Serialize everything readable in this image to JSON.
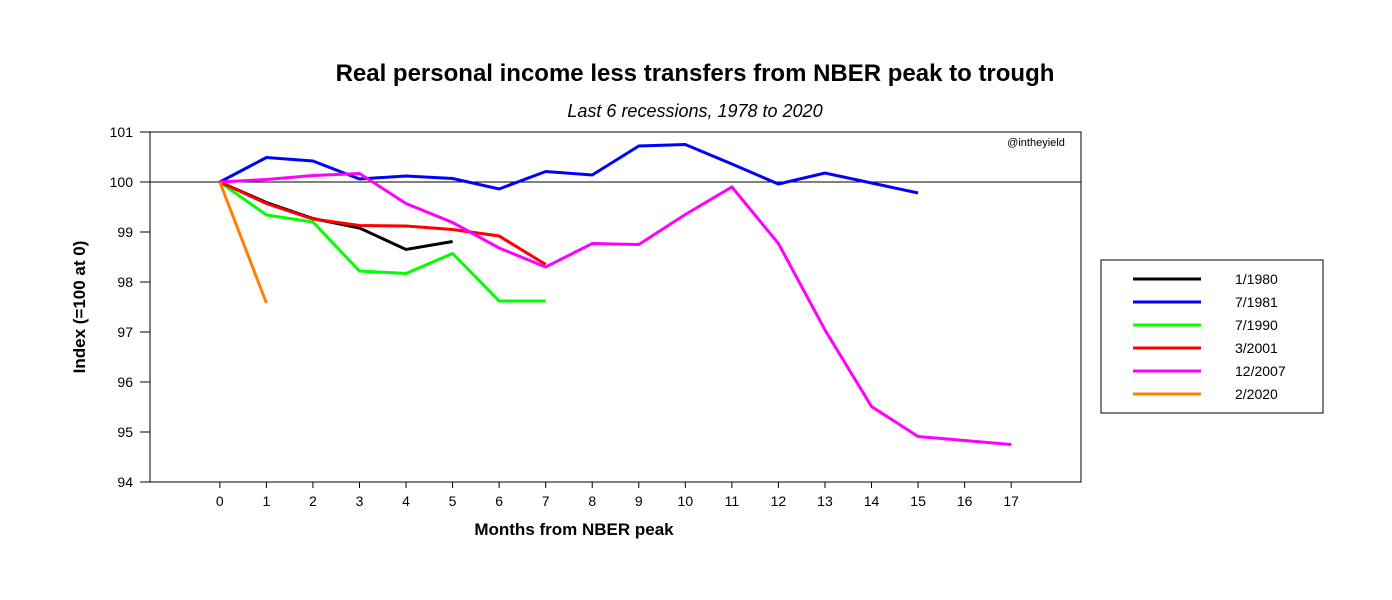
{
  "chart_data": {
    "type": "line",
    "title": "Real personal income less transfers from NBER peak to trough",
    "subtitle": "Last 6 recessions, 1978 to 2020",
    "xlabel": "Months from NBER peak",
    "ylabel": "Index (=100 at 0)",
    "watermark": "@intheyield",
    "xlim": [
      -1.5,
      18.5
    ],
    "ylim": [
      94,
      101
    ],
    "x_ticks": [
      0,
      1,
      2,
      3,
      4,
      5,
      6,
      7,
      8,
      9,
      10,
      11,
      12,
      13,
      14,
      15,
      16,
      17
    ],
    "y_ticks": [
      94,
      95,
      96,
      97,
      98,
      99,
      100,
      101
    ],
    "reference_line": 100,
    "grid": false,
    "legend_position": "right",
    "series": [
      {
        "name": "1/1980",
        "color": "#000000",
        "x": [
          0,
          1,
          2,
          3,
          4,
          5
        ],
        "values": [
          100,
          99.59,
          99.27,
          99.08,
          98.65,
          98.81
        ]
      },
      {
        "name": "7/1981",
        "color": "#0000ff",
        "x": [
          0,
          1,
          2,
          3,
          4,
          5,
          6,
          7,
          8,
          9,
          10,
          11,
          12,
          13,
          14,
          15
        ],
        "values": [
          100,
          100.49,
          100.42,
          100.06,
          100.12,
          100.07,
          99.86,
          100.21,
          100.14,
          100.72,
          100.75,
          100.36,
          99.96,
          100.18,
          99.98,
          99.78
        ]
      },
      {
        "name": "7/1990",
        "color": "#00ff00",
        "x": [
          0,
          1,
          2,
          3,
          4,
          5,
          6,
          7
        ],
        "values": [
          100,
          99.34,
          99.2,
          98.22,
          98.17,
          98.57,
          97.62,
          97.62
        ]
      },
      {
        "name": "3/2001",
        "color": "#ff0000",
        "x": [
          0,
          1,
          2,
          3,
          4,
          5,
          6,
          7
        ],
        "values": [
          100,
          99.57,
          99.26,
          99.13,
          99.12,
          99.05,
          98.92,
          98.35
        ]
      },
      {
        "name": "12/2007",
        "color": "#ff00ff",
        "x": [
          0,
          1,
          2,
          3,
          4,
          5,
          6,
          7,
          8,
          9,
          10,
          11,
          12,
          13,
          14,
          15,
          16,
          17
        ],
        "values": [
          100,
          100.05,
          100.13,
          100.17,
          99.57,
          99.19,
          98.68,
          98.3,
          98.77,
          98.75,
          99.35,
          99.9,
          98.77,
          97.04,
          95.51,
          94.91,
          94.83,
          94.75
        ]
      },
      {
        "name": "2/2020",
        "color": "#ff8000",
        "x": [
          0,
          1
        ],
        "values": [
          100,
          97.58
        ]
      }
    ]
  }
}
